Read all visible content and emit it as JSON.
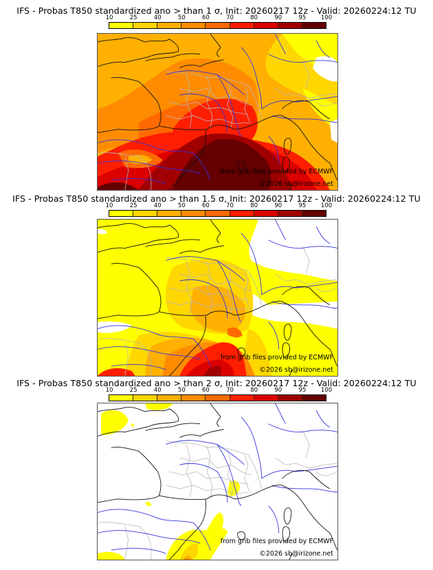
{
  "legend": {
    "ticks": [
      "10",
      "25",
      "40",
      "50",
      "60",
      "70",
      "80",
      "90",
      "95",
      "100"
    ],
    "colors": [
      "#ffff00",
      "#ffd700",
      "#ffb000",
      "#ff8c00",
      "#ff6a00",
      "#ff1e00",
      "#dc0000",
      "#a00000",
      "#640000"
    ]
  },
  "panels": [
    {
      "title": "IFS - Probas T850  standardized ano > than 1 σ, Init: 20260217 12z - Valid: 20260224:12 TU",
      "threshold": "1 σ",
      "source_credit": "from grib files provided by ECMWF",
      "copyright": "©2026 sb@irizone.net"
    },
    {
      "title": "IFS - Probas T850  standardized ano > than 1.5 σ, Init: 20260217 12z - Valid: 20260224:12 TU",
      "threshold": "1.5 σ",
      "source_credit": "from grib files provided by ECMWF",
      "copyright": "©2026 sb@irizone.net"
    },
    {
      "title": "IFS - Probas T850  standardized ano > than 2 σ, Init: 20260217 12z - Valid: 20260224:12 TU",
      "threshold": "2 σ",
      "source_credit": "from grib files provided by ECMWF",
      "copyright": "©2026 sb@irizone.net"
    }
  ]
}
